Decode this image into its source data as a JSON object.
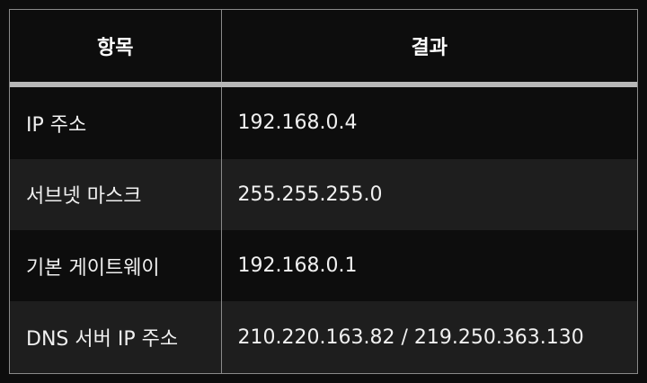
{
  "header": {
    "col1": "항목",
    "col2": "결과"
  },
  "rows": [
    {
      "key": "IP 주소",
      "value": "192.168.0.4"
    },
    {
      "key": "서브넷 마스크",
      "value": "255.255.255.0"
    },
    {
      "key": "기본 게이트웨이",
      "value": "192.168.0.1"
    },
    {
      "key": "DNS 서버 IP 주소",
      "value": "210.220.163.82 / 219.250.363.130"
    }
  ],
  "colors": {
    "background": "#0d0d0d",
    "alt_row": "#1e1e1e",
    "border": "#8a8a8a",
    "header_rule": "#b8b8b8"
  }
}
